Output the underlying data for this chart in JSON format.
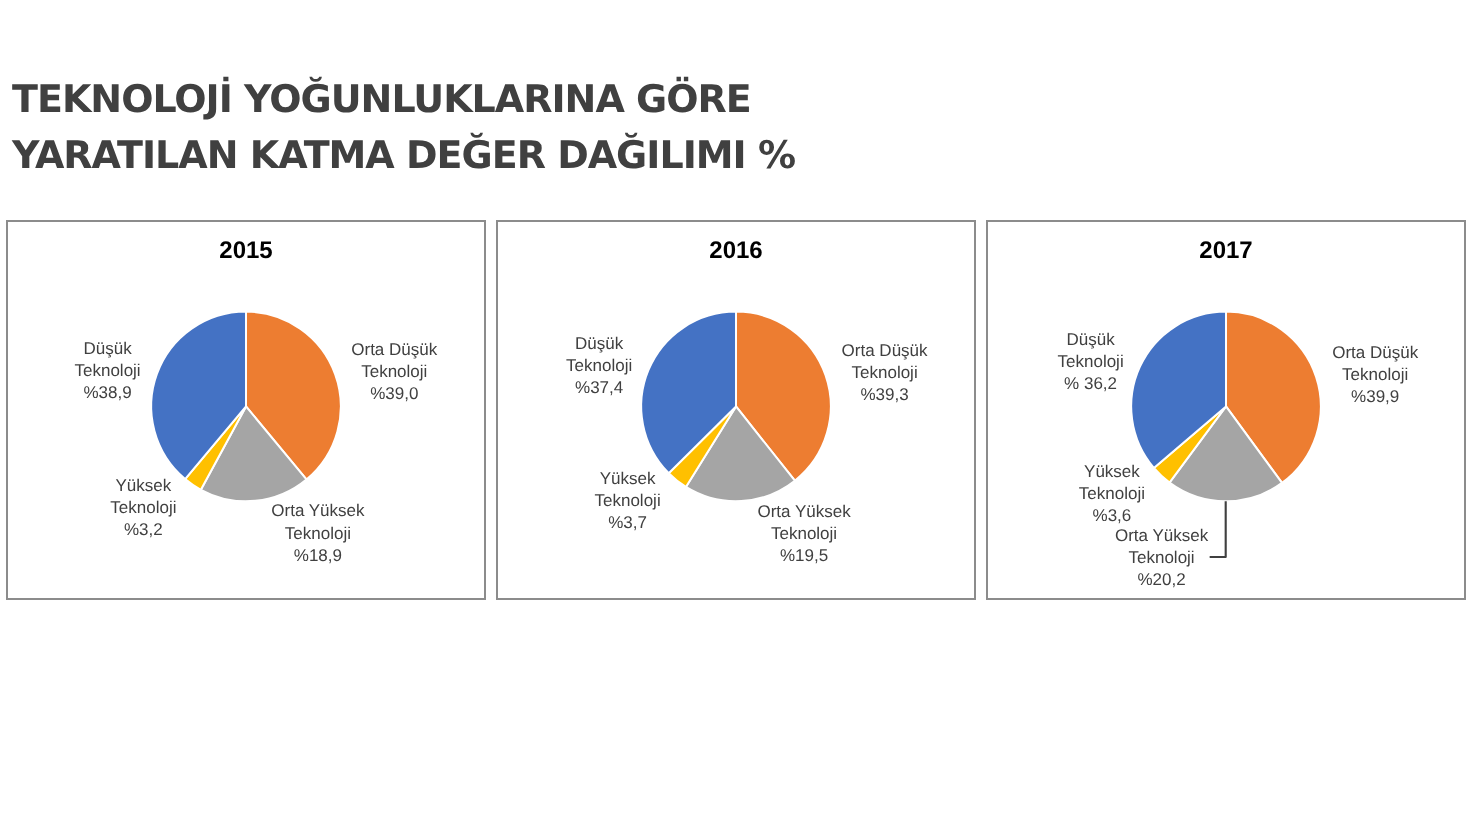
{
  "chart_data": [
    {
      "type": "other",
      "title": "TEKNOLOJİ YOĞUNLUKLARINA GÖRE\nYARATILAN KATMA DEĞER DAĞILIMI %"
    },
    {
      "type": "pie",
      "title": "2015",
      "categories": [
        "Orta Düşük Teknoloji",
        "Orta Yüksek Teknoloji",
        "Yüksek Teknoloji",
        "Düşük Teknoloji"
      ],
      "values": [
        39.0,
        18.9,
        3.2,
        38.9
      ],
      "value_labels": [
        "%39,0",
        "%18,9",
        "%3,2",
        "%38,9"
      ],
      "colors": [
        "#ed7d31",
        "#a5a5a5",
        "#ffc000",
        "#4472c4"
      ]
    },
    {
      "type": "pie",
      "title": "2016",
      "categories": [
        "Orta Düşük Teknoloji",
        "Orta Yüksek Teknoloji",
        "Yüksek Teknoloji",
        "Düşük Teknoloji"
      ],
      "values": [
        39.3,
        19.5,
        3.7,
        37.4
      ],
      "value_labels": [
        "%39,3",
        "%19,5",
        "%3,7",
        "%37,4"
      ],
      "colors": [
        "#ed7d31",
        "#a5a5a5",
        "#ffc000",
        "#4472c4"
      ]
    },
    {
      "type": "pie",
      "title": "2017",
      "categories": [
        "Orta Düşük Teknoloji",
        "Orta Yüksek Teknoloji",
        "Yüksek Teknoloji",
        "Düşük Teknoloji"
      ],
      "values": [
        39.9,
        20.2,
        3.6,
        36.2
      ],
      "value_labels": [
        "%39,9",
        "%20,2",
        "%3,6",
        "% 36,2"
      ],
      "colors": [
        "#ed7d31",
        "#a5a5a5",
        "#ffc000",
        "#4472c4"
      ]
    }
  ]
}
